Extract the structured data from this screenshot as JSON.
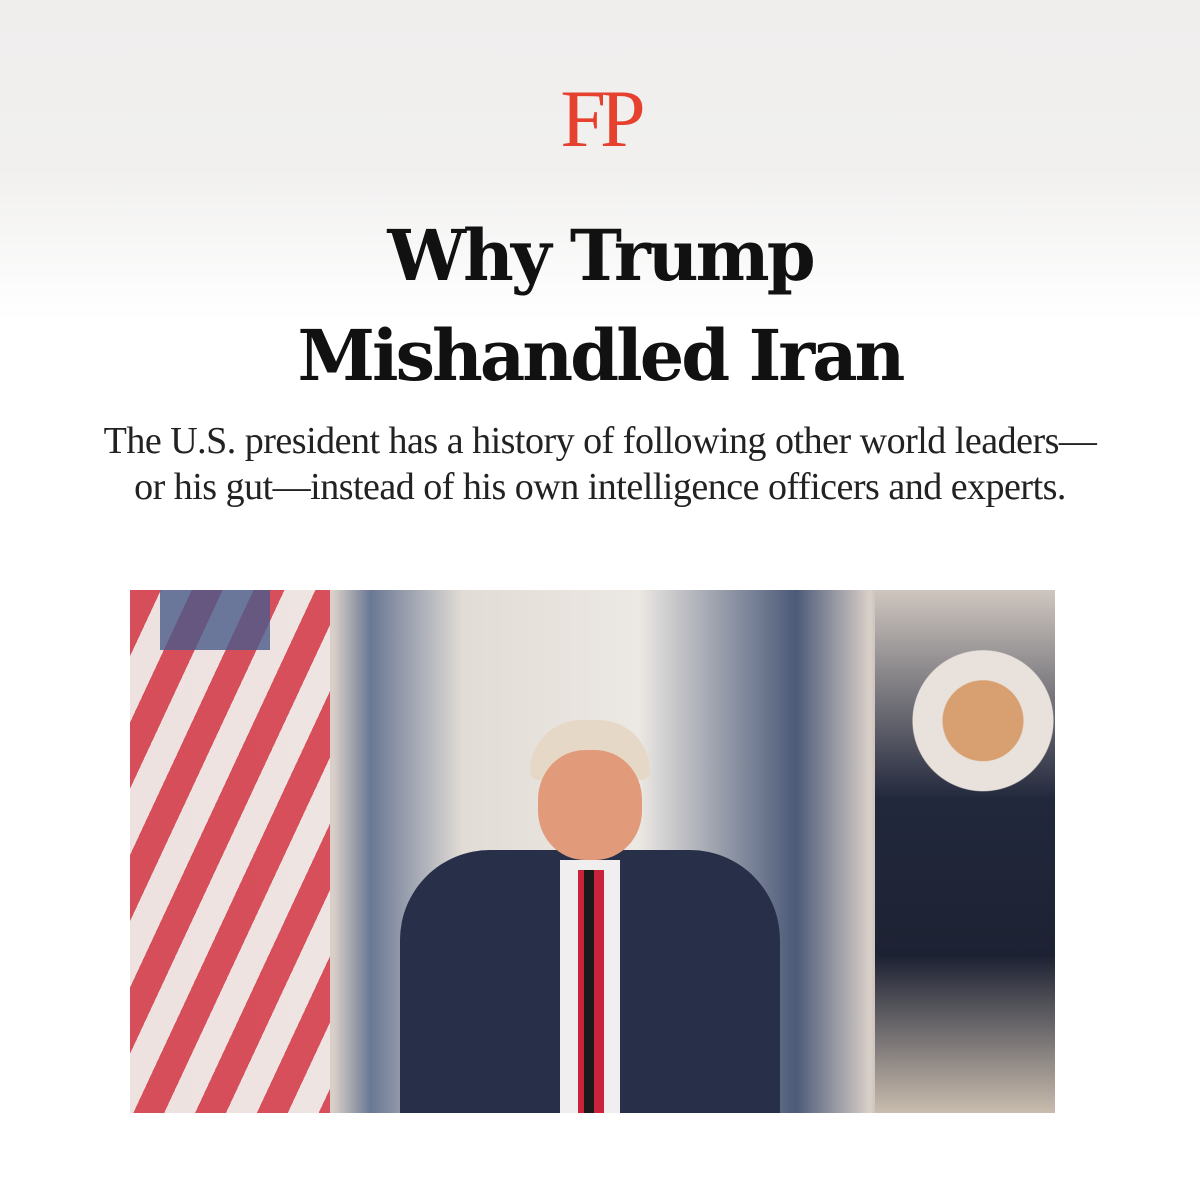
{
  "brand": {
    "logo_text": "FP",
    "color": "#e6402e"
  },
  "article": {
    "title_line1": "Why Trump",
    "title_line2": "Mishandled Iran",
    "dek": "The U.S. president has a history of following other world leaders—or his gut—instead of his own intelligence officers and experts."
  },
  "image": {
    "subject": "Trump speaking at a podium between a U.S. flag and the presidential seal"
  }
}
